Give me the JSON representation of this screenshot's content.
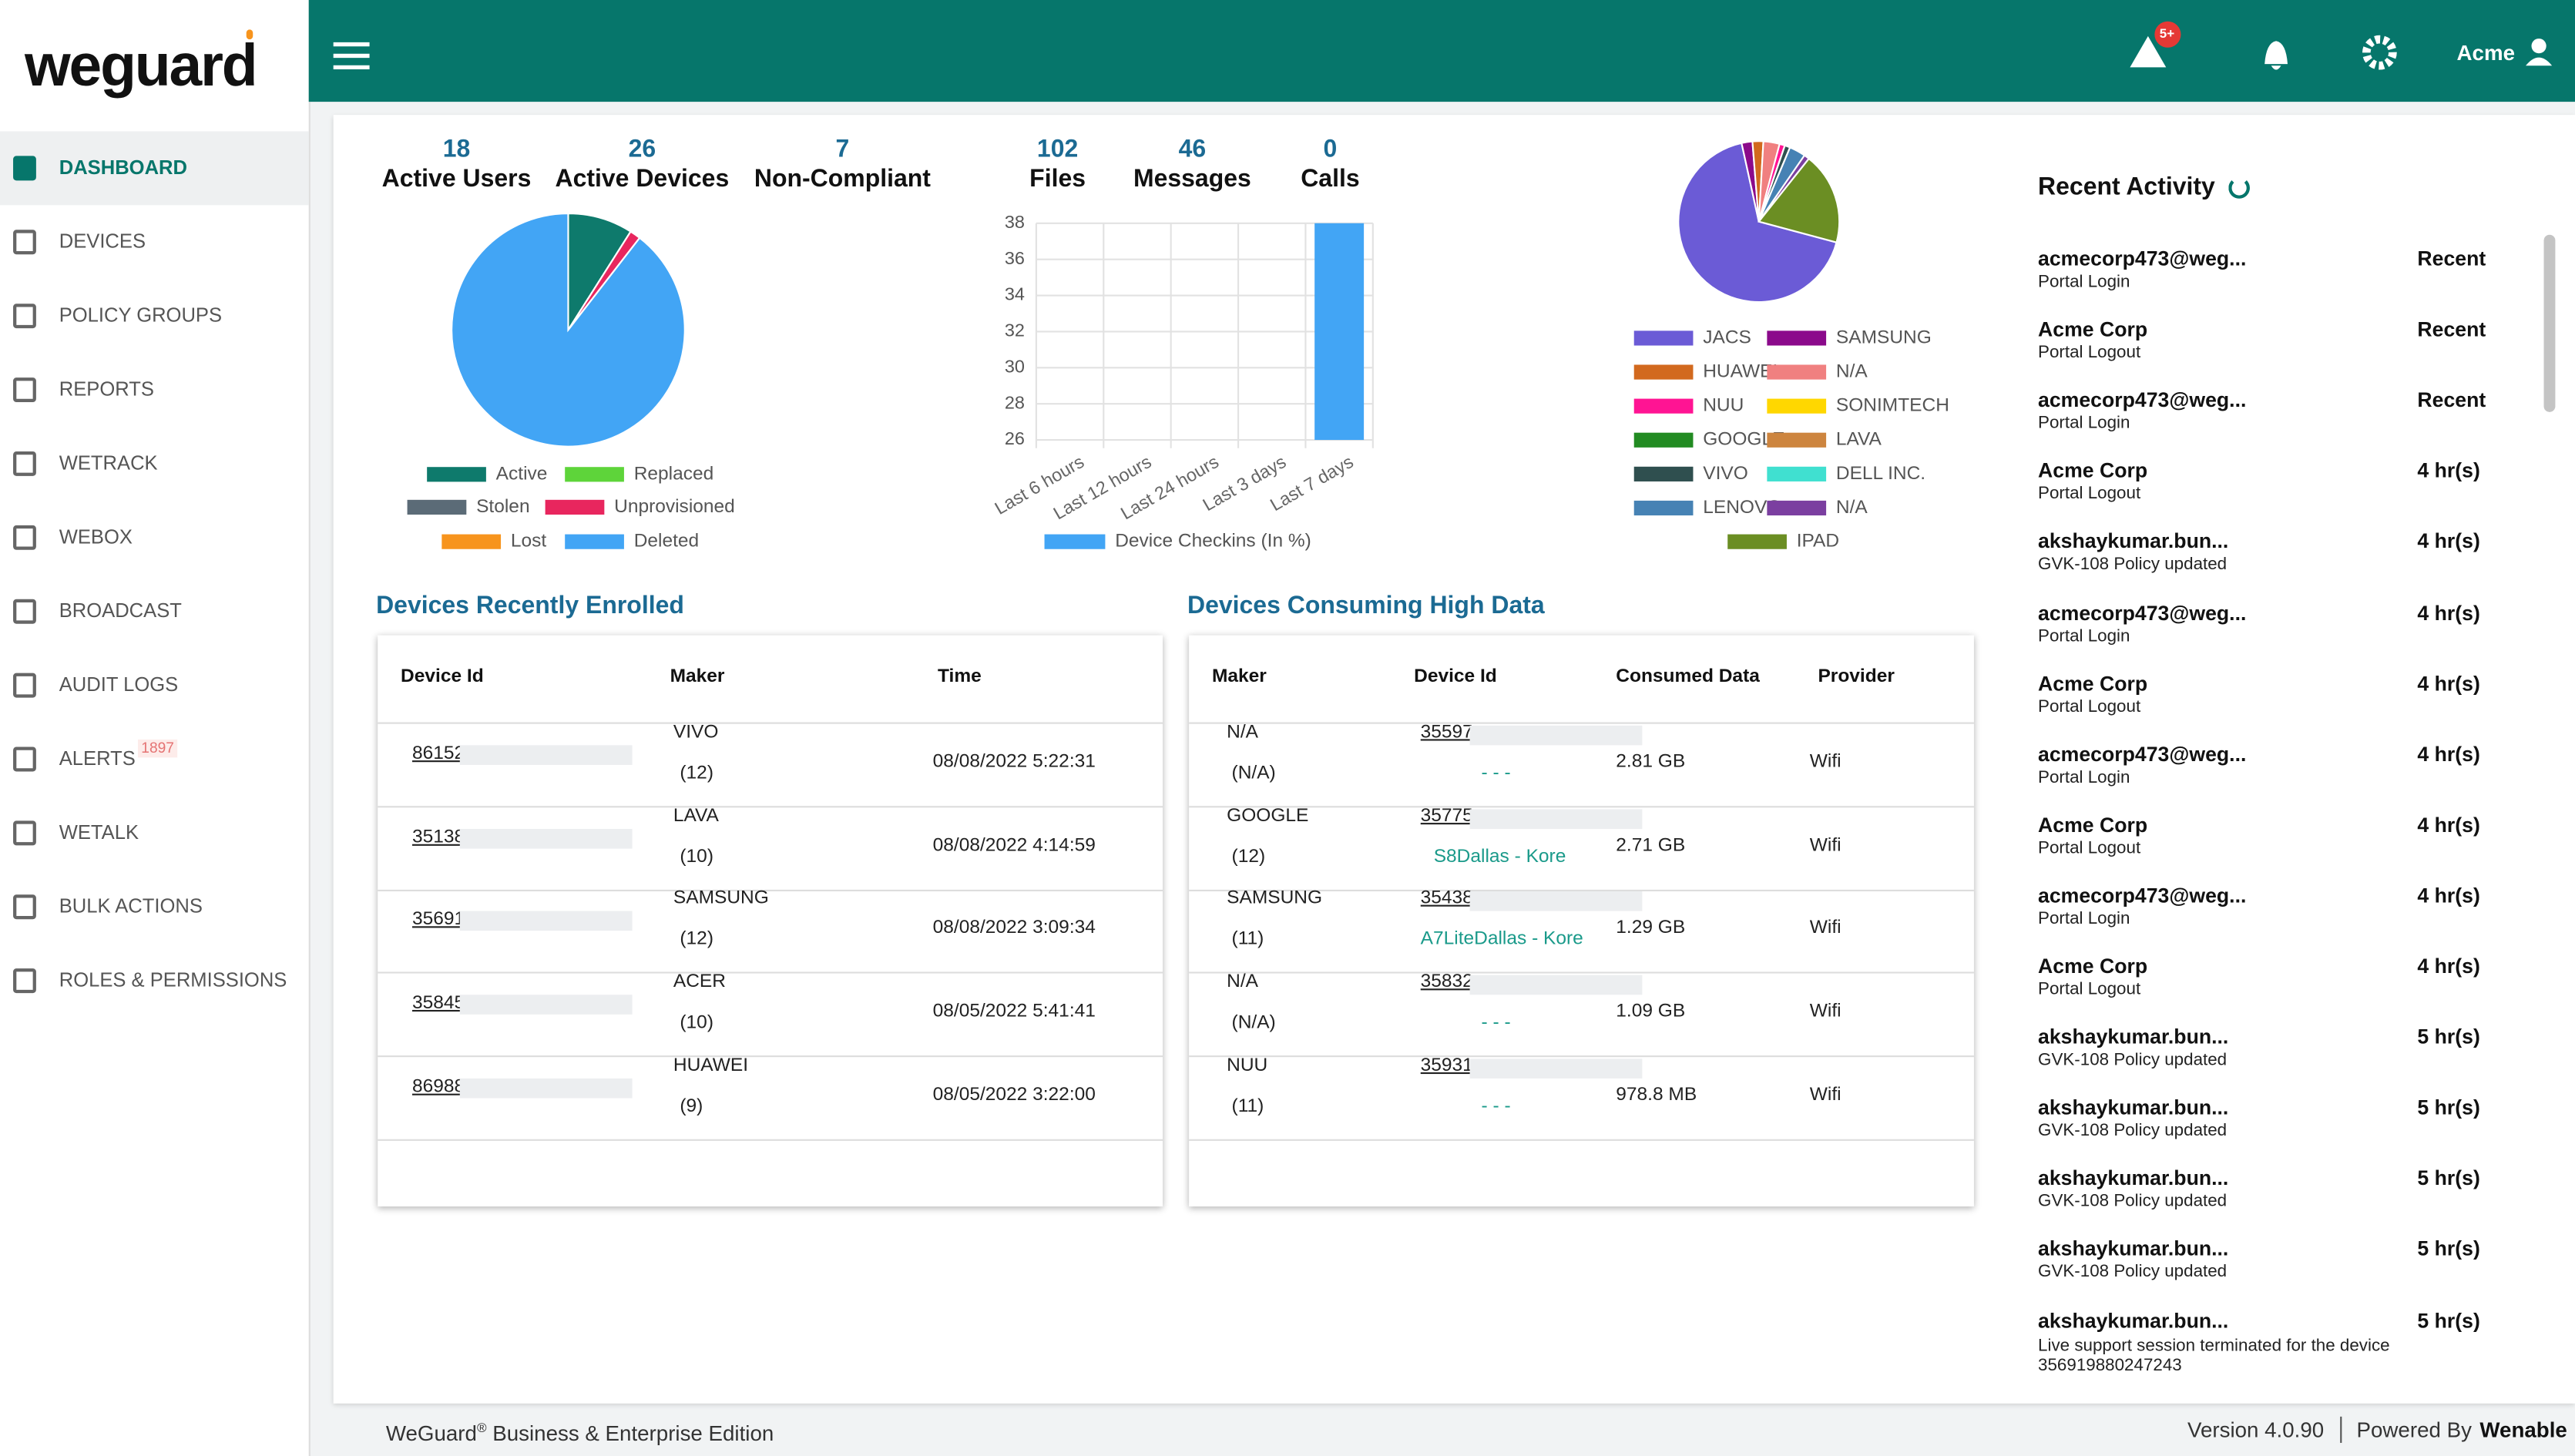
{
  "sidebar": {
    "logo": "weguard",
    "menu": [
      {
        "label": "DASHBOARD"
      },
      {
        "label": "DEVICES"
      },
      {
        "label": "POLICY GROUPS"
      },
      {
        "label": "REPORTS"
      },
      {
        "label": "WETRACK"
      },
      {
        "label": "WEBOX"
      },
      {
        "label": "BROADCAST"
      },
      {
        "label": "AUDIT LOGS"
      },
      {
        "label": "ALERTS",
        "badge": "1897"
      },
      {
        "label": "WETALK"
      },
      {
        "label": "BULK ACTIONS"
      },
      {
        "label": "ROLES & PERMISSIONS"
      }
    ]
  },
  "header": {
    "alert_badge": "5+",
    "user": "Acme"
  },
  "stats": [
    {
      "value": 18,
      "label": "Active Users"
    },
    {
      "value": 26,
      "label": "Active Devices"
    },
    {
      "value": 7,
      "label": "Non-Compliant"
    },
    {
      "value": 102,
      "label": "Files"
    },
    {
      "value": 46,
      "label": "Messages"
    },
    {
      "value": 0,
      "label": "Calls"
    }
  ],
  "chart_data": [
    {
      "type": "pie",
      "categories": [
        "Active",
        "Replaced",
        "Stolen",
        "Unprovisioned",
        "Lost",
        "Deleted"
      ],
      "values": [
        9,
        0,
        0,
        1.5,
        0,
        89.5
      ],
      "colors": [
        "#0e7a6c",
        "#5ed43a",
        "#5b6b77",
        "#e8265e",
        "#f7941d",
        "#42a5f5"
      ]
    },
    {
      "type": "bar",
      "categories": [
        "Last 6 hours",
        "Last 12 hours",
        "Last 24 hours",
        "Last 3 days",
        "Last 7 days"
      ],
      "series": [
        {
          "name": "Device Checkins (In %)",
          "color": "#42a5f5",
          "values": [
            26,
            26,
            26,
            26,
            38
          ]
        }
      ],
      "ylim": [
        26,
        38
      ],
      "yticks": [
        26,
        28,
        30,
        32,
        34,
        36,
        38
      ],
      "grid": true
    },
    {
      "type": "pie",
      "categories": [
        "JACS",
        "SAMSUNG",
        "HUAWEI",
        "N/A",
        "NUU",
        "SONIMTECH",
        "GOOGLE",
        "LAVA",
        "VIVO",
        "DELL INC.",
        "LENOVO",
        "N/A",
        "IPAD"
      ],
      "values": [
        62,
        2,
        2,
        3,
        1,
        0,
        0,
        0,
        1,
        0,
        3,
        1,
        17
      ],
      "colors": [
        "#6b5bd6",
        "#8b0a8b",
        "#d2691e",
        "#f08080",
        "#ff1493",
        "#ffd700",
        "#228b22",
        "#cd853f",
        "#2f4f4f",
        "#40e0d0",
        "#4682b4",
        "#7b3fa0",
        "#6b8e23"
      ]
    }
  ],
  "tables": {
    "enrolled": {
      "title": "Devices Recently Enrolled",
      "columns": [
        "Device Id",
        "Maker",
        "Time"
      ],
      "rows": [
        {
          "device_id": "86152",
          "maker": "VIVO",
          "count": "(12)",
          "time": "08/08/2022 5:22:31"
        },
        {
          "device_id": "35138",
          "maker": "LAVA",
          "count": "(10)",
          "time": "08/08/2022 4:14:59"
        },
        {
          "device_id": "35691",
          "maker": "SAMSUNG",
          "count": "(12)",
          "time": "08/08/2022 3:09:34"
        },
        {
          "device_id": "35845",
          "maker": "ACER",
          "count": "(10)",
          "time": "08/05/2022 5:41:41"
        },
        {
          "device_id": "86988",
          "maker": "HUAWEI",
          "count": "(9)",
          "time": "08/05/2022 3:22:00"
        }
      ]
    },
    "high_data": {
      "title": "Devices Consuming High Data",
      "columns": [
        "Maker",
        "Device Id",
        "Consumed Data",
        "Provider"
      ],
      "rows": [
        {
          "maker": "N/A",
          "count": "(N/A)",
          "device_id": "35597",
          "sub": "- - -",
          "consumed": "2.81 GB",
          "provider": "Wifi"
        },
        {
          "maker": "GOOGLE",
          "count": "(12)",
          "device_id": "35775",
          "sub": "S8Dallas - Kore",
          "consumed": "2.71 GB",
          "provider": "Wifi"
        },
        {
          "maker": "SAMSUNG",
          "count": "(11)",
          "device_id": "35438",
          "sub": "A7LiteDallas - Kore",
          "consumed": "1.29 GB",
          "provider": "Wifi"
        },
        {
          "maker": "N/A",
          "count": "(N/A)",
          "device_id": "35832",
          "sub": "- - -",
          "consumed": "1.09 GB",
          "provider": "Wifi"
        },
        {
          "maker": "NUU",
          "count": "(11)",
          "device_id": "35931",
          "sub": "- - -",
          "consumed": "978.8 MB",
          "provider": "Wifi"
        }
      ]
    }
  },
  "activity": {
    "title": "Recent Activity",
    "items": [
      {
        "user": "acmecorp473@weg...",
        "action": "Portal Login",
        "time": "Recent"
      },
      {
        "user": "Acme Corp",
        "action": "Portal Logout",
        "time": "Recent"
      },
      {
        "user": "acmecorp473@weg...",
        "action": "Portal Login",
        "time": "Recent"
      },
      {
        "user": "Acme Corp",
        "action": "Portal Logout",
        "time": "4 hr(s)"
      },
      {
        "user": "akshaykumar.bun...",
        "action": "GVK-108 Policy updated",
        "time": "4 hr(s)"
      },
      {
        "user": "acmecorp473@weg...",
        "action": "Portal Login",
        "time": "4 hr(s)"
      },
      {
        "user": "Acme Corp",
        "action": "Portal Logout",
        "time": "4 hr(s)"
      },
      {
        "user": "acmecorp473@weg...",
        "action": "Portal Login",
        "time": "4 hr(s)"
      },
      {
        "user": "Acme Corp",
        "action": "Portal Logout",
        "time": "4 hr(s)"
      },
      {
        "user": "acmecorp473@weg...",
        "action": "Portal Login",
        "time": "4 hr(s)"
      },
      {
        "user": "Acme Corp",
        "action": "Portal Logout",
        "time": "4 hr(s)"
      },
      {
        "user": "akshaykumar.bun...",
        "action": "GVK-108 Policy updated",
        "time": "5 hr(s)"
      },
      {
        "user": "akshaykumar.bun...",
        "action": "GVK-108 Policy updated",
        "time": "5 hr(s)"
      },
      {
        "user": "akshaykumar.bun...",
        "action": "GVK-108 Policy updated",
        "time": "5 hr(s)"
      },
      {
        "user": "akshaykumar.bun...",
        "action": "GVK-108 Policy updated",
        "time": "5 hr(s)"
      },
      {
        "user": "akshaykumar.bun...",
        "action": "Live support session terminated for the device 356919880247243",
        "time": "5 hr(s)"
      }
    ]
  },
  "footer": {
    "brand": "WeGuard",
    "reg": "®",
    "edition": " Business & Enterprise Edition",
    "version": "Version 4.0.90",
    "powered": "Powered By",
    "company": "Wenable"
  }
}
